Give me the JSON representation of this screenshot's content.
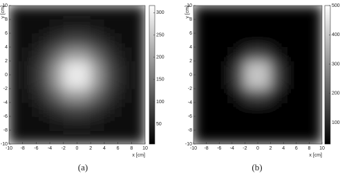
{
  "chart_data": [
    {
      "type": "heatmap",
      "caption": "(a)",
      "xlabel": "x [cm]",
      "ylabel": "y [cm]",
      "x": [
        -9,
        -7,
        -5,
        -3,
        -1,
        1,
        3,
        5,
        7,
        9
      ],
      "y": [
        -9,
        -7,
        -5,
        -3,
        -1,
        1,
        3,
        5,
        7,
        9
      ],
      "z": [
        [
          20,
          20,
          21,
          22,
          23,
          23,
          22,
          21,
          20,
          20
        ],
        [
          20,
          21,
          25,
          32,
          39,
          39,
          32,
          25,
          21,
          20
        ],
        [
          21,
          25,
          39,
          65,
          91,
          91,
          65,
          39,
          25,
          21
        ],
        [
          22,
          32,
          65,
          131,
          192,
          192,
          131,
          65,
          32,
          22
        ],
        [
          23,
          39,
          91,
          192,
          289,
          289,
          192,
          91,
          39,
          23
        ],
        [
          23,
          39,
          91,
          192,
          289,
          289,
          192,
          91,
          39,
          23
        ],
        [
          22,
          32,
          65,
          131,
          192,
          192,
          131,
          65,
          32,
          22
        ],
        [
          21,
          25,
          39,
          65,
          91,
          91,
          65,
          39,
          25,
          21
        ],
        [
          20,
          21,
          25,
          32,
          39,
          39,
          32,
          25,
          21,
          20
        ],
        [
          20,
          20,
          21,
          22,
          23,
          23,
          22,
          21,
          20,
          20
        ]
      ],
      "colormap": "gray",
      "clim": [
        5,
        316
      ],
      "cticks": [
        50,
        100,
        150,
        200,
        250,
        300
      ],
      "xlim": [
        -10,
        10
      ],
      "ylim": [
        -10,
        10
      ],
      "xticks": [
        -10,
        -8,
        -6,
        -4,
        -2,
        0,
        2,
        4,
        6,
        8,
        10
      ],
      "yticks": [
        -10,
        -8,
        -6,
        -4,
        -2,
        0,
        2,
        4,
        6,
        8,
        10
      ]
    },
    {
      "type": "heatmap",
      "caption": "(b)",
      "xlabel": "x [cm]",
      "ylabel": "y [cm]",
      "x": [
        -9,
        -7,
        -5,
        -3,
        -1,
        1,
        3,
        5,
        7,
        9
      ],
      "y": [
        -9,
        -7,
        -5,
        -3,
        -1,
        1,
        3,
        5,
        7,
        9
      ],
      "z": [
        [
          15,
          15,
          15,
          15,
          15,
          15,
          15,
          15,
          15,
          15
        ],
        [
          15,
          15,
          15,
          15,
          16,
          16,
          15,
          15,
          15,
          15
        ],
        [
          15,
          15,
          16,
          22,
          34,
          34,
          22,
          16,
          15,
          15
        ],
        [
          15,
          15,
          22,
          66,
          154,
          154,
          66,
          22,
          15,
          15
        ],
        [
          15,
          16,
          34,
          154,
          392,
          392,
          154,
          34,
          16,
          15
        ],
        [
          15,
          16,
          34,
          154,
          392,
          392,
          154,
          34,
          16,
          15
        ],
        [
          15,
          15,
          22,
          66,
          154,
          154,
          66,
          22,
          15,
          15
        ],
        [
          15,
          15,
          16,
          22,
          34,
          34,
          22,
          16,
          15,
          15
        ],
        [
          15,
          15,
          15,
          15,
          16,
          16,
          15,
          15,
          15,
          15
        ],
        [
          15,
          15,
          15,
          15,
          15,
          15,
          15,
          15,
          15,
          15
        ]
      ],
      "colormap": "gray",
      "clim": [
        27,
        500
      ],
      "cticks": [
        100,
        200,
        300,
        400,
        500
      ],
      "xlim": [
        -10,
        10
      ],
      "ylim": [
        -10,
        10
      ],
      "xticks": [
        -10,
        -8,
        -6,
        -4,
        -2,
        0,
        2,
        4,
        6,
        8,
        10
      ],
      "yticks": [
        -10,
        -8,
        -6,
        -4,
        -2,
        0,
        2,
        4,
        6,
        8,
        10
      ]
    }
  ]
}
